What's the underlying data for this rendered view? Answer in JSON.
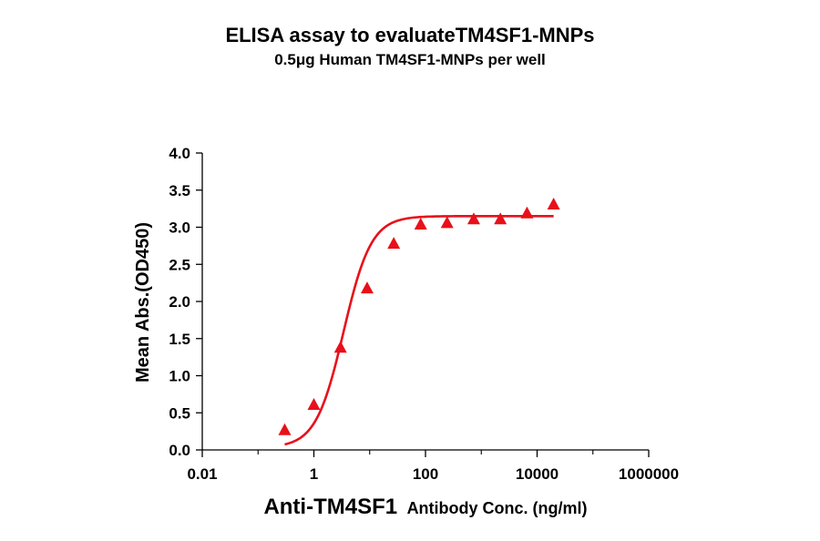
{
  "chart_data": {
    "type": "scatter",
    "title": "ELISA assay to evaluateTM4SF1-MNPs",
    "subtitle": "0.5μg Human TM4SF1-MNPs per well",
    "xlabel_main": "Anti-TM4SF1",
    "xlabel_rest": "Antibody Conc. (ng/ml)",
    "ylabel": "Mean Abs.(OD450)",
    "xscale": "log",
    "xlim": [
      0.01,
      1000000
    ],
    "ylim": [
      0,
      4.0
    ],
    "x_ticks": [
      0.01,
      1,
      100,
      10000,
      1000000
    ],
    "x_tick_labels": [
      "0.01",
      "1",
      "100",
      "10000",
      "1000000"
    ],
    "y_ticks": [
      0.0,
      0.5,
      1.0,
      1.5,
      2.0,
      2.5,
      3.0,
      3.5,
      4.0
    ],
    "y_tick_labels": [
      "0.0",
      "0.5",
      "1.0",
      "1.5",
      "2.0",
      "2.5",
      "3.0",
      "3.5",
      "4.0"
    ],
    "series": [
      {
        "marker": "triangle",
        "color": "#e8101a",
        "x": [
          0.3,
          1,
          3,
          9,
          27,
          82,
          244,
          732,
          2197,
          6591,
          19773
        ],
        "y": [
          0.26,
          0.6,
          1.37,
          2.17,
          2.77,
          3.03,
          3.05,
          3.1,
          3.1,
          3.18,
          3.3
        ]
      }
    ],
    "fit_curve": {
      "color": "#e8101a",
      "x_start": 0.3,
      "x_end": 19773
    },
    "grid": false,
    "legend": "none"
  }
}
